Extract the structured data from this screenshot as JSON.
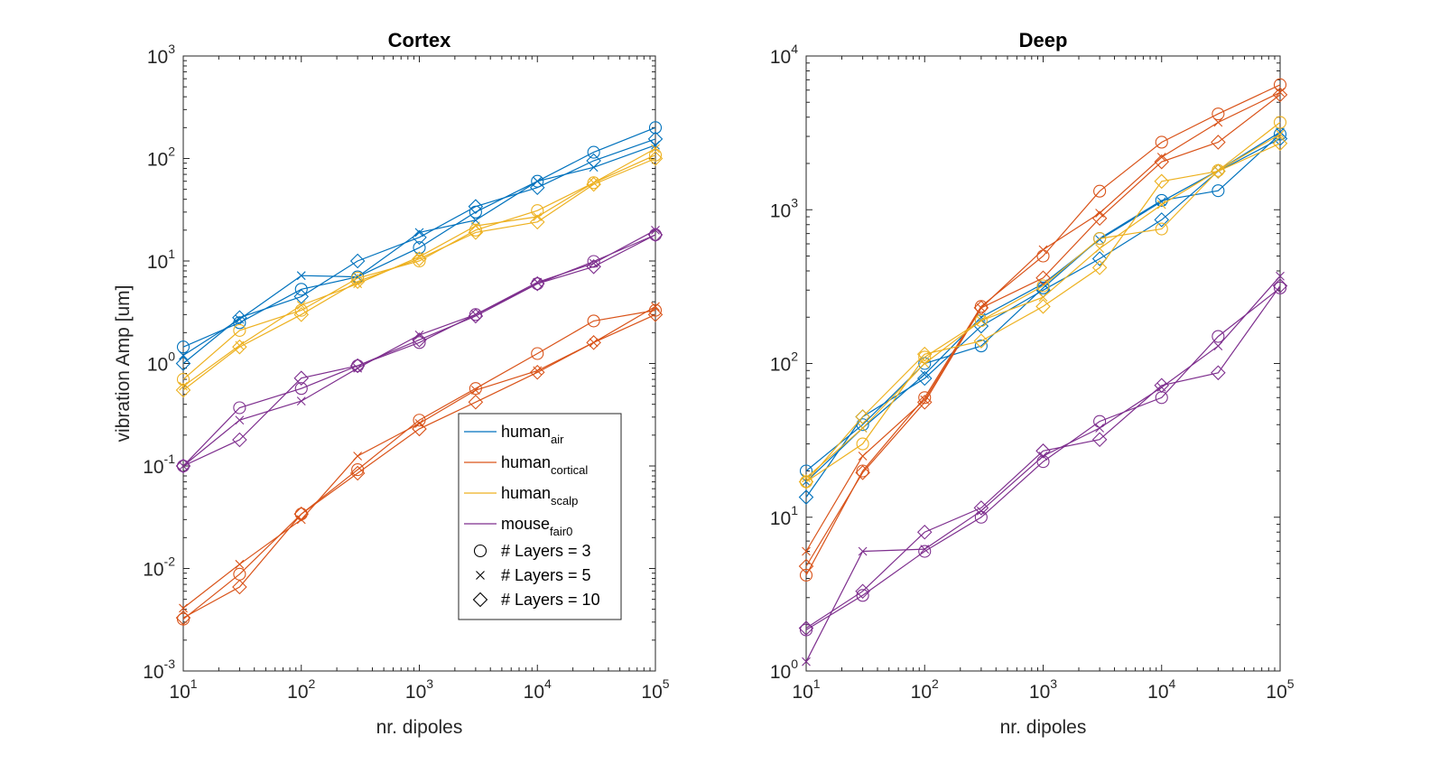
{
  "colors": {
    "human_air": "#0072BD",
    "human_cortical": "#D95319",
    "human_scalp": "#EDB120",
    "mouse_fair0": "#7E2F8E",
    "axis": "#262626"
  },
  "legend": {
    "placement": "lower-right of left panel",
    "entries": [
      {
        "key": "human_air",
        "base": "human",
        "sub": "air"
      },
      {
        "key": "human_cortical",
        "base": "human",
        "sub": "cortical"
      },
      {
        "key": "human_scalp",
        "base": "human",
        "sub": "scalp"
      },
      {
        "key": "mouse_fair0",
        "base": "mouse",
        "sub": "fair0"
      }
    ],
    "markers": [
      {
        "marker": "circle",
        "glyph": "○",
        "label": "# Layers = 3"
      },
      {
        "marker": "x",
        "glyph": "×",
        "label": "# Layers = 5"
      },
      {
        "marker": "diamond",
        "glyph": "◇",
        "label": "# Layers = 10"
      }
    ]
  },
  "chart_data": [
    {
      "type": "line",
      "title": "Cortex",
      "xlabel": "nr. dipoles",
      "ylabel": "vibration Amp [um]",
      "xscale": "log",
      "yscale": "log",
      "xlim": [
        10,
        100000
      ],
      "ylim": [
        0.001,
        1000
      ],
      "xticks": [
        {
          "base": "10",
          "exp": "1"
        },
        {
          "base": "10",
          "exp": "2"
        },
        {
          "base": "10",
          "exp": "3"
        },
        {
          "base": "10",
          "exp": "4"
        },
        {
          "base": "10",
          "exp": "5"
        }
      ],
      "yticks": [
        {
          "base": "10",
          "exp": "-3"
        },
        {
          "base": "10",
          "exp": "-2"
        },
        {
          "base": "10",
          "exp": "-1"
        },
        {
          "base": "10",
          "exp": "0"
        },
        {
          "base": "10",
          "exp": "1"
        },
        {
          "base": "10",
          "exp": "2"
        },
        {
          "base": "10",
          "exp": "3"
        }
      ],
      "grid": false,
      "x": [
        10,
        30,
        100,
        300,
        1000,
        3000,
        10000,
        30000,
        100000
      ],
      "series": [
        {
          "key": "human_air",
          "layers": 3,
          "marker": "circle",
          "values": [
            1.45,
            2.5,
            5.3,
            7.0,
            13.5,
            30,
            60,
            115,
            200
          ]
        },
        {
          "key": "human_air",
          "layers": 5,
          "marker": "x",
          "values": [
            1.2,
            2.7,
            7.2,
            7.0,
            19,
            25,
            60,
            82,
            135
          ]
        },
        {
          "key": "human_air",
          "layers": 10,
          "marker": "diamond",
          "values": [
            1.0,
            2.8,
            4.5,
            10,
            17,
            34,
            52,
            95,
            155
          ]
        },
        {
          "key": "human_cortical",
          "layers": 3,
          "marker": "circle",
          "values": [
            0.0032,
            0.0088,
            0.034,
            0.092,
            0.28,
            0.57,
            1.25,
            2.6,
            3.3
          ]
        },
        {
          "key": "human_cortical",
          "layers": 5,
          "marker": "x",
          "values": [
            0.0041,
            0.011,
            0.03,
            0.125,
            0.26,
            0.55,
            0.85,
            1.6,
            3.6
          ]
        },
        {
          "key": "human_cortical",
          "layers": 10,
          "marker": "diamond",
          "values": [
            0.0033,
            0.0066,
            0.034,
            0.085,
            0.23,
            0.42,
            0.82,
            1.6,
            3.0
          ]
        },
        {
          "key": "human_scalp",
          "layers": 3,
          "marker": "circle",
          "values": [
            0.7,
            2.1,
            3.3,
            6.8,
            10,
            20,
            31,
            58,
            108
          ]
        },
        {
          "key": "human_scalp",
          "layers": 5,
          "marker": "x",
          "values": [
            0.6,
            1.5,
            3.7,
            6.0,
            11,
            22,
            27,
            58,
            125
          ]
        },
        {
          "key": "human_scalp",
          "layers": 10,
          "marker": "diamond",
          "values": [
            0.55,
            1.45,
            3.0,
            6.3,
            10.5,
            19,
            24,
            56,
            100
          ]
        },
        {
          "key": "mouse_fair0",
          "layers": 3,
          "marker": "circle",
          "values": [
            0.1,
            0.37,
            0.57,
            0.95,
            1.6,
            3.0,
            6.0,
            9.9,
            18
          ]
        },
        {
          "key": "mouse_fair0",
          "layers": 5,
          "marker": "x",
          "values": [
            0.1,
            0.28,
            0.43,
            0.9,
            1.9,
            3.0,
            6.2,
            9.5,
            20
          ]
        },
        {
          "key": "mouse_fair0",
          "layers": 10,
          "marker": "diamond",
          "values": [
            0.1,
            0.18,
            0.72,
            0.95,
            1.7,
            2.9,
            6.0,
            8.8,
            18
          ]
        }
      ]
    },
    {
      "type": "line",
      "title": "Deep",
      "xlabel": "nr. dipoles",
      "ylabel": "",
      "xscale": "log",
      "yscale": "log",
      "xlim": [
        10,
        100000
      ],
      "ylim": [
        1,
        10000
      ],
      "xticks": [
        {
          "base": "10",
          "exp": "1"
        },
        {
          "base": "10",
          "exp": "2"
        },
        {
          "base": "10",
          "exp": "3"
        },
        {
          "base": "10",
          "exp": "4"
        },
        {
          "base": "10",
          "exp": "5"
        }
      ],
      "yticks": [
        {
          "base": "10",
          "exp": "0"
        },
        {
          "base": "10",
          "exp": "1"
        },
        {
          "base": "10",
          "exp": "2"
        },
        {
          "base": "10",
          "exp": "3"
        },
        {
          "base": "10",
          "exp": "4"
        }
      ],
      "grid": false,
      "x": [
        10,
        30,
        100,
        300,
        1000,
        3000,
        10000,
        30000,
        100000
      ],
      "series": [
        {
          "key": "human_air",
          "layers": 3,
          "marker": "circle",
          "values": [
            20,
            40,
            100,
            130,
            310,
            650,
            1150,
            1330,
            3100
          ]
        },
        {
          "key": "human_air",
          "layers": 5,
          "marker": "x",
          "values": [
            17,
            38,
            85,
            200,
            330,
            640,
            1130,
            1800,
            3200
          ]
        },
        {
          "key": "human_air",
          "layers": 10,
          "marker": "diamond",
          "values": [
            13.5,
            45,
            80,
            175,
            300,
            480,
            860,
            1780,
            2900
          ]
        },
        {
          "key": "human_cortical",
          "layers": 3,
          "marker": "circle",
          "values": [
            4.2,
            20,
            60,
            235,
            500,
            1320,
            2750,
            4200,
            6500
          ]
        },
        {
          "key": "human_cortical",
          "layers": 5,
          "marker": "x",
          "values": [
            6.0,
            25,
            58,
            230,
            550,
            950,
            2200,
            3700,
            5800
          ]
        },
        {
          "key": "human_cortical",
          "layers": 10,
          "marker": "diamond",
          "values": [
            4.8,
            19.5,
            56,
            230,
            360,
            880,
            2050,
            2750,
            5600
          ]
        },
        {
          "key": "human_scalp",
          "layers": 3,
          "marker": "circle",
          "values": [
            17,
            30,
            110,
            190,
            320,
            650,
            750,
            1800,
            3700
          ]
        },
        {
          "key": "human_scalp",
          "layers": 5,
          "marker": "x",
          "values": [
            18,
            38,
            100,
            190,
            270,
            560,
            1080,
            1800,
            3100
          ]
        },
        {
          "key": "human_scalp",
          "layers": 10,
          "marker": "diamond",
          "values": [
            17,
            45,
            115,
            140,
            235,
            420,
            1530,
            1780,
            2700
          ]
        },
        {
          "key": "mouse_fair0",
          "layers": 3,
          "marker": "circle",
          "values": [
            1.85,
            3.1,
            6.0,
            10,
            23,
            42,
            60,
            150,
            310
          ]
        },
        {
          "key": "mouse_fair0",
          "layers": 5,
          "marker": "x",
          "values": [
            1.15,
            6.0,
            6.2,
            11,
            25,
            38,
            70,
            130,
            370
          ]
        },
        {
          "key": "mouse_fair0",
          "layers": 10,
          "marker": "diamond",
          "values": [
            1.9,
            3.3,
            8.0,
            11.5,
            27,
            32,
            72,
            87,
            320
          ]
        }
      ]
    }
  ]
}
